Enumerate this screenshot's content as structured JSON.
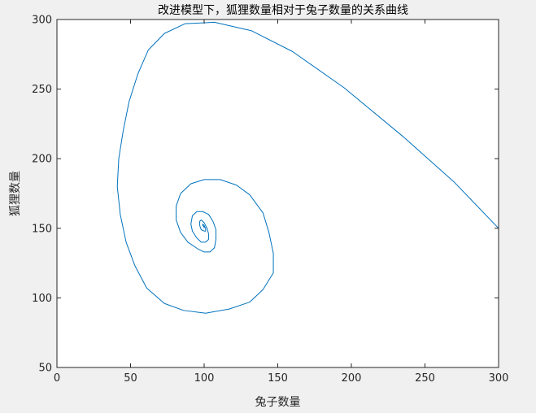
{
  "chart_data": {
    "type": "line",
    "title": "改进模型下，狐狸数量相对于兔子数量的关系曲线",
    "xlabel": "兔子数量",
    "ylabel": "狐狸数量",
    "xlim": [
      0,
      300
    ],
    "ylim": [
      50,
      300
    ],
    "xticks": [
      0,
      50,
      100,
      150,
      200,
      250,
      300
    ],
    "yticks": [
      50,
      100,
      150,
      200,
      250,
      300
    ],
    "xtick_labels": [
      "0",
      "50",
      "100",
      "150",
      "200",
      "250",
      "300"
    ],
    "ytick_labels": [
      "50",
      "100",
      "150",
      "200",
      "250",
      "300"
    ],
    "grid": false,
    "series": [
      {
        "color": "#0072bd",
        "x": [
          300,
          270,
          235,
          195,
          160,
          132,
          107,
          87,
          73,
          62,
          55,
          49,
          45,
          42,
          41,
          43,
          47,
          53,
          61,
          73,
          86,
          101,
          117,
          131,
          140,
          147,
          147,
          144,
          140,
          131,
          122,
          111,
          100,
          91,
          84,
          81,
          81,
          84,
          89,
          96,
          100,
          104,
          107,
          108,
          108,
          106,
          103,
          99,
          95,
          92,
          91,
          92,
          95,
          98,
          101,
          103,
          103,
          102,
          100,
          98,
          97,
          97,
          98,
          100,
          101,
          101,
          100,
          99,
          99,
          100,
          100
        ],
        "y": [
          150,
          183,
          216,
          251,
          277,
          292,
          298,
          297,
          290,
          278,
          261,
          241,
          220,
          200,
          180,
          160,
          140,
          123,
          107,
          96,
          91,
          89,
          92,
          97,
          106,
          118,
          132,
          147,
          161,
          174,
          181,
          185,
          185,
          182,
          175,
          166,
          156,
          147,
          140,
          135,
          133,
          133,
          136,
          142,
          149,
          155,
          160,
          162,
          162,
          159,
          153,
          148,
          143,
          140,
          140,
          142,
          146,
          150,
          154,
          156,
          155,
          152,
          149,
          148,
          148,
          150,
          152,
          153,
          152,
          151,
          150
        ]
      }
    ]
  }
}
